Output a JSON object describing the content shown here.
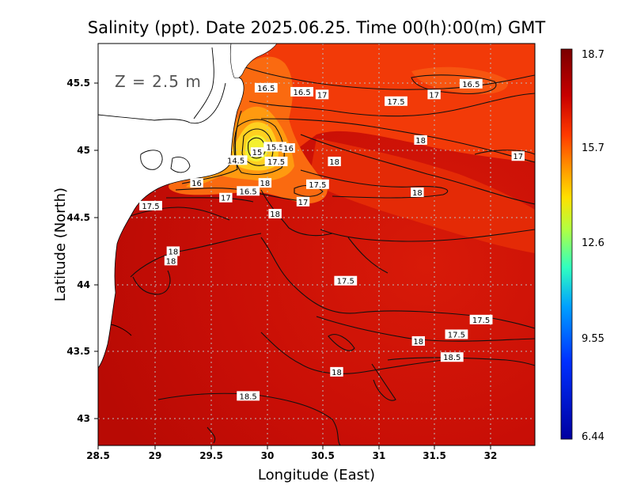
{
  "title": "Salinity (ppt). Date 2025.06.25. Time 00(h):00(m) GMT",
  "depth_label": "Z = 2.5 m",
  "x_axis_title": "Longitude (East)",
  "y_axis_title": "Latitude (North)",
  "chart_data": {
    "type": "heatmap",
    "variable": "Salinity (ppt)",
    "xlim": [
      28.5,
      32.4
    ],
    "ylim": [
      42.8,
      45.8
    ],
    "x_ticks": [
      "28.5",
      "29",
      "29.5",
      "30",
      "30.5",
      "31",
      "31.5",
      "32"
    ],
    "y_ticks": [
      "43",
      "43.5",
      "44",
      "44.5",
      "45",
      "45.5"
    ],
    "grid": true,
    "colorbar": {
      "placement": "right",
      "min": 6.44,
      "max": 18.7,
      "tick_labels": [
        "18.7",
        "15.7",
        "12.6",
        "9.55",
        "6.44"
      ],
      "colors": [
        "#7a0000",
        "#c80000",
        "#ff3a00",
        "#ff9000",
        "#ffe000",
        "#b4ff40",
        "#30ffc0",
        "#00a0ff",
        "#0030ff",
        "#0000a0"
      ]
    },
    "contour_labels": [
      {
        "text": "16.5",
        "lon": 30.0,
        "lat": 45.47
      },
      {
        "text": "16.5",
        "lon": 30.32,
        "lat": 45.44
      },
      {
        "text": "17",
        "lon": 30.5,
        "lat": 45.42
      },
      {
        "text": "16.5",
        "lon": 31.83,
        "lat": 45.5
      },
      {
        "text": "17",
        "lon": 31.5,
        "lat": 45.42
      },
      {
        "text": "17.5",
        "lon": 31.16,
        "lat": 45.37
      },
      {
        "text": "18",
        "lon": 31.38,
        "lat": 45.08
      },
      {
        "text": "17",
        "lon": 32.25,
        "lat": 44.96
      },
      {
        "text": "15",
        "lon": 29.92,
        "lat": 44.99
      },
      {
        "text": "15.5",
        "lon": 30.08,
        "lat": 45.03
      },
      {
        "text": "16",
        "lon": 30.2,
        "lat": 45.02
      },
      {
        "text": "14.5",
        "lon": 29.73,
        "lat": 44.93
      },
      {
        "text": "17.5",
        "lon": 30.09,
        "lat": 44.92
      },
      {
        "text": "18",
        "lon": 30.61,
        "lat": 44.92
      },
      {
        "text": "16",
        "lon": 29.38,
        "lat": 44.76
      },
      {
        "text": "18",
        "lon": 29.99,
        "lat": 44.76
      },
      {
        "text": "17.5",
        "lon": 30.46,
        "lat": 44.75
      },
      {
        "text": "16.5",
        "lon": 29.84,
        "lat": 44.7
      },
      {
        "text": "17",
        "lon": 29.64,
        "lat": 44.65
      },
      {
        "text": "17",
        "lon": 30.33,
        "lat": 44.62
      },
      {
        "text": "18",
        "lon": 31.35,
        "lat": 44.69
      },
      {
        "text": "17.5",
        "lon": 28.97,
        "lat": 44.59
      },
      {
        "text": "18",
        "lon": 30.08,
        "lat": 44.53
      },
      {
        "text": "18",
        "lon": 29.17,
        "lat": 44.25
      },
      {
        "text": "18",
        "lon": 29.15,
        "lat": 44.18
      },
      {
        "text": "17.5",
        "lon": 30.71,
        "lat": 44.03
      },
      {
        "text": "17.5",
        "lon": 31.92,
        "lat": 43.74
      },
      {
        "text": "17.5",
        "lon": 31.7,
        "lat": 43.63
      },
      {
        "text": "18",
        "lon": 31.36,
        "lat": 43.58
      },
      {
        "text": "18.5",
        "lon": 31.66,
        "lat": 43.46
      },
      {
        "text": "18",
        "lon": 30.63,
        "lat": 43.35
      },
      {
        "text": "18.5",
        "lon": 29.84,
        "lat": 43.17
      }
    ]
  }
}
